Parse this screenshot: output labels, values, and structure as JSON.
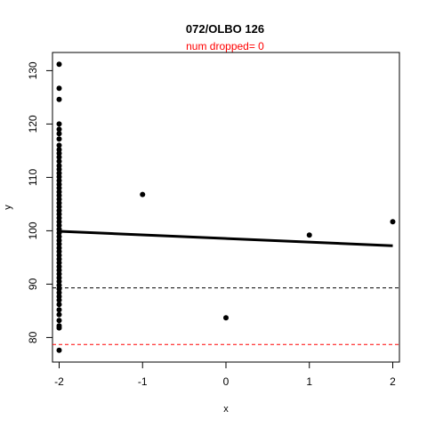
{
  "chart_data": {
    "type": "scatter",
    "title": "072/OLBO 126",
    "subtitle": "num dropped= 0",
    "xlabel": "x",
    "ylabel": "y",
    "xlim": [
      -2.08,
      2.08
    ],
    "ylim": [
      75.4,
      133.4
    ],
    "xticks": [
      -2,
      -1,
      0,
      1,
      2
    ],
    "xtick_labels": [
      "-2",
      "-1",
      "0",
      "1",
      "2"
    ],
    "yticks": [
      80,
      90,
      100,
      110,
      120,
      130
    ],
    "ytick_labels": [
      "80",
      "90",
      "100",
      "110",
      "120",
      "130"
    ],
    "points": [
      {
        "x": -2,
        "y": 131.2
      },
      {
        "x": -2,
        "y": 126.7
      },
      {
        "x": -2,
        "y": 124.6
      },
      {
        "x": -2,
        "y": 120.0
      },
      {
        "x": -2,
        "y": 119.0
      },
      {
        "x": -2,
        "y": 118.2
      },
      {
        "x": -2,
        "y": 117.2
      },
      {
        "x": -2,
        "y": 116.0
      },
      {
        "x": -2,
        "y": 115.2
      },
      {
        "x": -2,
        "y": 114.5
      },
      {
        "x": -2,
        "y": 113.8
      },
      {
        "x": -2,
        "y": 113.0
      },
      {
        "x": -2,
        "y": 112.2
      },
      {
        "x": -2,
        "y": 111.5
      },
      {
        "x": -2,
        "y": 110.8
      },
      {
        "x": -2,
        "y": 110.1
      },
      {
        "x": -2,
        "y": 109.4
      },
      {
        "x": -2,
        "y": 108.7
      },
      {
        "x": -2,
        "y": 108.0
      },
      {
        "x": -2,
        "y": 107.3
      },
      {
        "x": -2,
        "y": 106.6
      },
      {
        "x": -2,
        "y": 105.9
      },
      {
        "x": -2,
        "y": 105.2
      },
      {
        "x": -2,
        "y": 104.5
      },
      {
        "x": -2,
        "y": 103.8
      },
      {
        "x": -2,
        "y": 103.1
      },
      {
        "x": -2,
        "y": 102.4
      },
      {
        "x": -2,
        "y": 101.7
      },
      {
        "x": -2,
        "y": 101.0
      },
      {
        "x": -2,
        "y": 100.3
      },
      {
        "x": -2,
        "y": 99.6
      },
      {
        "x": -2,
        "y": 98.9
      },
      {
        "x": -2,
        "y": 98.2
      },
      {
        "x": -2,
        "y": 97.5
      },
      {
        "x": -2,
        "y": 96.8
      },
      {
        "x": -2,
        "y": 96.1
      },
      {
        "x": -2,
        "y": 95.4
      },
      {
        "x": -2,
        "y": 94.7
      },
      {
        "x": -2,
        "y": 94.0
      },
      {
        "x": -2,
        "y": 93.3
      },
      {
        "x": -2,
        "y": 92.6
      },
      {
        "x": -2,
        "y": 91.9
      },
      {
        "x": -2,
        "y": 91.2
      },
      {
        "x": -2,
        "y": 90.5
      },
      {
        "x": -2,
        "y": 89.8
      },
      {
        "x": -2,
        "y": 89.1
      },
      {
        "x": -2,
        "y": 88.4
      },
      {
        "x": -2,
        "y": 87.7
      },
      {
        "x": -2,
        "y": 87.0
      },
      {
        "x": -2,
        "y": 86.2
      },
      {
        "x": -2,
        "y": 85.2
      },
      {
        "x": -2,
        "y": 84.3
      },
      {
        "x": -2,
        "y": 83.2
      },
      {
        "x": -2,
        "y": 82.2
      },
      {
        "x": -2,
        "y": 81.8
      },
      {
        "x": -2,
        "y": 77.6
      },
      {
        "x": -1,
        "y": 106.8
      },
      {
        "x": 0,
        "y": 83.7
      },
      {
        "x": 1,
        "y": 99.2
      },
      {
        "x": 2,
        "y": 101.7
      }
    ],
    "regression_line": {
      "x": [
        -2,
        2
      ],
      "y": [
        99.9,
        97.2
      ],
      "color": "#000000"
    },
    "hlines": [
      {
        "y": 89.3,
        "color": "#000000",
        "style": "dashed"
      },
      {
        "y": 78.7,
        "color": "#ff0000",
        "style": "dashed"
      }
    ],
    "colors": {
      "points": "#000000",
      "subtitle": "#ff0000"
    },
    "grid": false,
    "legend": "none"
  }
}
